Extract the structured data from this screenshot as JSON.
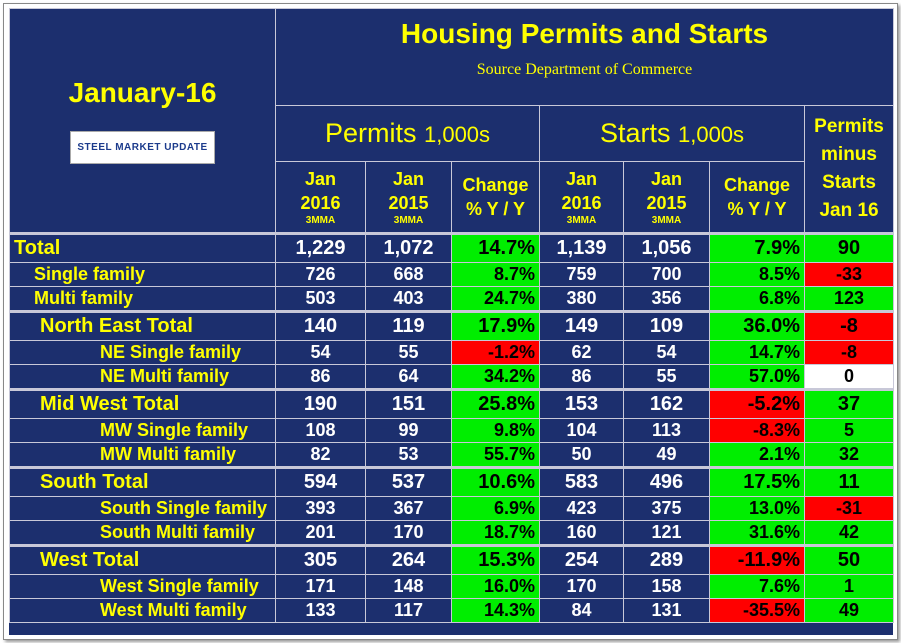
{
  "title": "Housing Permits and Starts",
  "source": "Source Department of Commerce",
  "period": "January-16",
  "logo": "STEEL MARKET UPDATE",
  "header": {
    "permits": {
      "label": "Permits",
      "unit": "1,000s"
    },
    "starts": {
      "label": "Starts",
      "unit": "1,000s"
    },
    "difference": [
      "Permits",
      "minus",
      "Starts",
      "Jan 16"
    ],
    "columns": [
      [
        "Jan",
        "2016",
        "3MMA"
      ],
      [
        "Jan",
        "2015",
        "3MMA"
      ],
      [
        "Change",
        "% Y / Y"
      ],
      [
        "Jan",
        "2016",
        "3MMA"
      ],
      [
        "Jan",
        "2015",
        "3MMA"
      ],
      [
        "Change",
        "% Y / Y"
      ]
    ]
  },
  "groups": [
    {
      "rows": [
        {
          "label": "Total",
          "cells": [
            "1,229",
            "1,072",
            "14.7%",
            "1,139",
            "1,056",
            "7.9%",
            "90"
          ]
        },
        {
          "label": "Single family",
          "cells": [
            "726",
            "668",
            "8.7%",
            "759",
            "700",
            "8.5%",
            "-33"
          ]
        },
        {
          "label": "Multi family",
          "cells": [
            "503",
            "403",
            "24.7%",
            "380",
            "356",
            "6.8%",
            "123"
          ]
        }
      ]
    },
    {
      "rows": [
        {
          "label": "North East Total",
          "cells": [
            "140",
            "119",
            "17.9%",
            "149",
            "109",
            "36.0%",
            "-8"
          ]
        },
        {
          "label": "NE Single family",
          "cells": [
            "54",
            "55",
            "-1.2%",
            "62",
            "54",
            "14.7%",
            "-8"
          ]
        },
        {
          "label": "NE Multi family",
          "cells": [
            "86",
            "64",
            "34.2%",
            "86",
            "55",
            "57.0%",
            "0"
          ]
        }
      ]
    },
    {
      "rows": [
        {
          "label": "Mid West Total",
          "cells": [
            "190",
            "151",
            "25.8%",
            "153",
            "162",
            "-5.2%",
            "37"
          ]
        },
        {
          "label": "MW Single family",
          "cells": [
            "108",
            "99",
            "9.8%",
            "104",
            "113",
            "-8.3%",
            "5"
          ]
        },
        {
          "label": "MW Multi family",
          "cells": [
            "82",
            "53",
            "55.7%",
            "50",
            "49",
            "2.1%",
            "32"
          ]
        }
      ]
    },
    {
      "rows": [
        {
          "label": "South Total",
          "cells": [
            "594",
            "537",
            "10.6%",
            "583",
            "496",
            "17.5%",
            "11"
          ]
        },
        {
          "label": "South Single family",
          "cells": [
            "393",
            "367",
            "6.9%",
            "423",
            "375",
            "13.0%",
            "-31"
          ]
        },
        {
          "label": "South Multi family",
          "cells": [
            "201",
            "170",
            "18.7%",
            "160",
            "121",
            "31.6%",
            "42"
          ]
        }
      ]
    },
    {
      "rows": [
        {
          "label": "West Total",
          "cells": [
            "305",
            "264",
            "15.3%",
            "254",
            "289",
            "-11.9%",
            "50"
          ]
        },
        {
          "label": "West Single family",
          "cells": [
            "171",
            "148",
            "16.0%",
            "170",
            "158",
            "7.6%",
            "1"
          ]
        },
        {
          "label": "West Multi family",
          "cells": [
            "133",
            "117",
            "14.3%",
            "84",
            "131",
            "-35.5%",
            "49"
          ]
        }
      ]
    }
  ]
}
